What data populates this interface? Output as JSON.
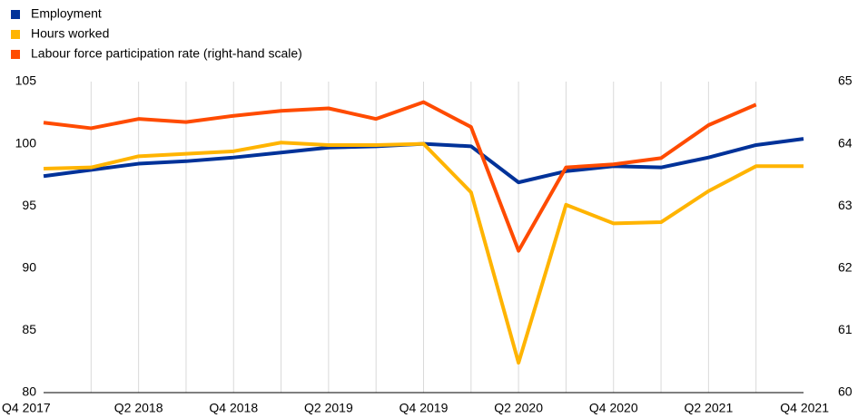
{
  "chart_data": {
    "type": "line",
    "categories": [
      "Q4 2017",
      null,
      "Q2 2018",
      null,
      "Q4 2018",
      null,
      "Q2 2019",
      null,
      "Q4 2019",
      null,
      "Q2 2020",
      null,
      "Q4 2020",
      null,
      "Q2 2021",
      null,
      "Q4 2021"
    ],
    "series": [
      {
        "name": "Employment",
        "color": "#003299",
        "values": [
          97.4,
          97.9,
          98.4,
          98.6,
          98.9,
          99.3,
          99.7,
          99.8,
          100.0,
          99.8,
          96.9,
          97.8,
          98.2,
          98.1,
          98.9,
          99.9,
          100.4
        ]
      },
      {
        "name": "Hours worked",
        "color": "#ffb400",
        "values": [
          98.0,
          98.1,
          99.0,
          99.2,
          99.4,
          100.1,
          99.9,
          99.9,
          100.0,
          96.1,
          82.4,
          95.1,
          93.6,
          93.7,
          96.2,
          98.2,
          98.2
        ]
      },
      {
        "name": "Labour force participation rate (right-hand scale)",
        "color": "#ff4b00",
        "axis": "y2",
        "values": [
          64.34,
          64.25,
          64.4,
          64.35,
          64.45,
          64.53,
          64.57,
          64.4,
          64.67,
          64.27,
          62.28,
          63.62,
          63.67,
          63.77,
          64.3,
          64.63,
          null
        ]
      }
    ],
    "ylim": [
      80,
      105
    ],
    "yticks": [
      80,
      85,
      90,
      95,
      100,
      105
    ],
    "y2lim": [
      60,
      65
    ],
    "y2ticks": [
      60,
      61,
      62,
      63,
      64,
      65
    ],
    "grid": true,
    "legend": "top-left"
  }
}
